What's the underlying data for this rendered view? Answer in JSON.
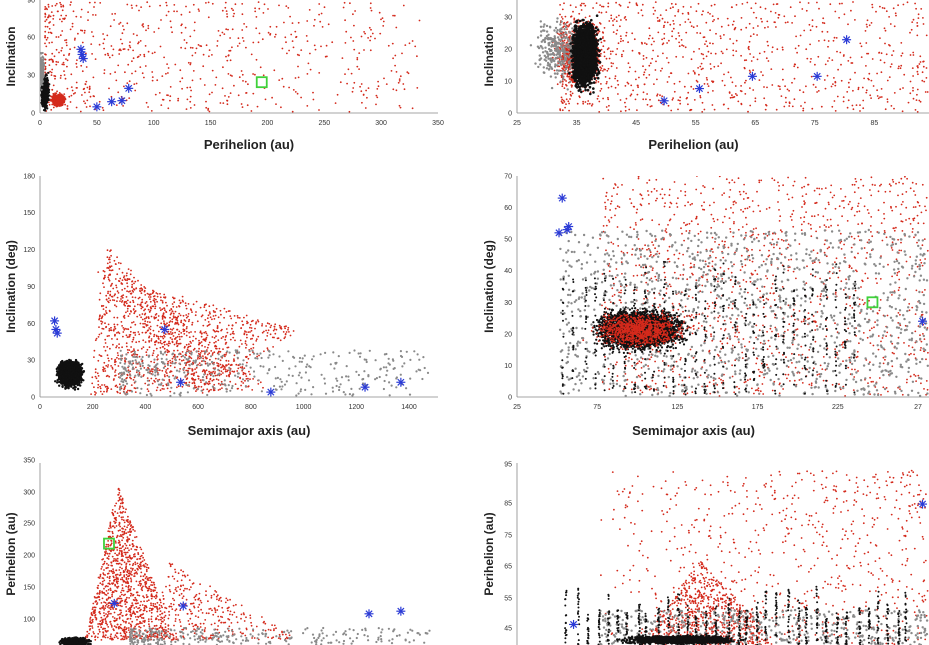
{
  "chart_data": [
    {
      "type": "scatter",
      "xlabel": "Perihelion (au)",
      "ylabel": "Inclination",
      "x_ticks": [
        "0",
        "50",
        "100",
        "150",
        "200",
        "250",
        "300",
        "350"
      ],
      "y_ticks": [
        "0",
        "30",
        "60",
        "90"
      ],
      "xlim": [
        0,
        350
      ],
      "ylim": [
        0,
        110
      ],
      "grid": false,
      "colors": {
        "black": "#111111",
        "grey": "#8a8a8a",
        "red": "#d42a1c",
        "blue": "#2b3bd6",
        "green": "#3fd13a"
      },
      "series": [
        {
          "values": [
            [
              33,
              20
            ],
            [
              34,
              35
            ],
            [
              35,
              10
            ],
            [
              36,
              45
            ],
            [
              37,
              25
            ],
            [
              38,
              5
            ],
            [
              40,
              30
            ],
            [
              42,
              15
            ],
            [
              35,
              50
            ],
            [
              33,
              40
            ],
            [
              39,
              55
            ],
            [
              41,
              8
            ]
          ]
        },
        {
          "values": [
            [
              45,
              30
            ],
            [
              55,
              10
            ],
            [
              70,
              40
            ],
            [
              90,
              60
            ],
            [
              110,
              80
            ],
            [
              130,
              50
            ],
            [
              150,
              70
            ],
            [
              170,
              90
            ],
            [
              200,
              100
            ],
            [
              240,
              85
            ],
            [
              280,
              75
            ],
            [
              310,
              95
            ],
            [
              95,
              25
            ],
            [
              120,
              100
            ],
            [
              60,
              55
            ]
          ]
        },
        {
          "values": [
            [
              36,
              62
            ],
            [
              37,
              57
            ],
            [
              38,
              53
            ],
            [
              50,
              6
            ],
            [
              63,
              11
            ],
            [
              72,
              12
            ],
            [
              78,
              24
            ]
          ]
        },
        {
          "values": [
            [
              195,
              30
            ]
          ]
        }
      ]
    },
    {
      "type": "scatter",
      "xlabel": "Perihelion (au)",
      "ylabel": "Inclination",
      "x_ticks": [
        "25",
        "35",
        "45",
        "55",
        "65",
        "75",
        "85",
        "9"
      ],
      "y_ticks": [
        "0",
        "10",
        "20",
        "30"
      ],
      "xlim": [
        25,
        95
      ],
      "ylim": [
        0,
        37
      ],
      "grid": false,
      "series": [
        {
          "values": [
            [
              32,
              15
            ],
            [
              34,
              25
            ],
            [
              36,
              20
            ],
            [
              38,
              10
            ],
            [
              37,
              30
            ],
            [
              35,
              5
            ],
            [
              39,
              18
            ],
            [
              40,
              22
            ],
            [
              33,
              12
            ],
            [
              41,
              28
            ]
          ]
        },
        {
          "values": [
            [
              44,
              20
            ],
            [
              50,
              25
            ],
            [
              60,
              30
            ],
            [
              70,
              15
            ],
            [
              80,
              33
            ],
            [
              90,
              20
            ],
            [
              55,
              10
            ],
            [
              48,
              35
            ],
            [
              65,
              28
            ],
            [
              85,
              12
            ]
          ]
        },
        {
          "values": [
            [
              50,
              4
            ],
            [
              56,
              8
            ],
            [
              65,
              12
            ],
            [
              76,
              12
            ],
            [
              81,
              24
            ]
          ]
        }
      ]
    },
    {
      "type": "scatter",
      "xlabel": "Semimajor axis (au)",
      "ylabel": "Inclination (deg)",
      "x_ticks": [
        "0",
        "200",
        "400",
        "600",
        "800",
        "1000",
        "1200",
        "1400"
      ],
      "y_ticks": [
        "0",
        "30",
        "60",
        "90",
        "120",
        "150",
        "180"
      ],
      "xlim": [
        0,
        1500
      ],
      "ylim": [
        0,
        180
      ],
      "grid": false,
      "series": [
        {
          "values": [
            [
              60,
              20
            ],
            [
              80,
              35
            ],
            [
              100,
              10
            ],
            [
              120,
              28
            ],
            [
              150,
              15
            ],
            [
              180,
              40
            ],
            [
              90,
              5
            ],
            [
              200,
              22
            ]
          ]
        },
        {
          "values": [
            [
              250,
              18
            ],
            [
              350,
              25
            ],
            [
              450,
              12
            ],
            [
              550,
              30
            ],
            [
              700,
              20
            ],
            [
              850,
              15
            ],
            [
              1000,
              25
            ],
            [
              1100,
              18
            ]
          ]
        },
        {
          "values": [
            [
              230,
              60
            ],
            [
              270,
              90
            ],
            [
              300,
              110
            ],
            [
              350,
              80
            ],
            [
              400,
              70
            ],
            [
              450,
              50
            ],
            [
              500,
              40
            ],
            [
              600,
              30
            ],
            [
              280,
              50
            ]
          ]
        },
        {
          "values": [
            [
              55,
              62
            ],
            [
              60,
              55
            ],
            [
              65,
              52
            ],
            [
              470,
              55
            ],
            [
              530,
              12
            ],
            [
              870,
              4
            ],
            [
              1225,
              8
            ],
            [
              1360,
              12
            ]
          ]
        }
      ]
    },
    {
      "type": "scatter",
      "xlabel": "Semimajor axis (au)",
      "ylabel": "Inclination (deg)",
      "x_ticks": [
        "25",
        "75",
        "125",
        "175",
        "225",
        "27"
      ],
      "y_ticks": [
        "0",
        "10",
        "20",
        "30",
        "40",
        "50",
        "60",
        "70"
      ],
      "xlim": [
        25,
        280
      ],
      "ylim": [
        0,
        70
      ],
      "grid": false,
      "series": [
        {
          "values": [
            [
              70,
              15
            ],
            [
              90,
              25
            ],
            [
              110,
              20
            ],
            [
              130,
              30
            ],
            [
              150,
              18
            ],
            [
              170,
              22
            ],
            [
              60,
              10
            ],
            [
              100,
              35
            ]
          ]
        },
        {
          "values": [
            [
              180,
              30
            ],
            [
              200,
              25
            ],
            [
              230,
              35
            ],
            [
              260,
              20
            ],
            [
              210,
              40
            ],
            [
              250,
              15
            ]
          ]
        },
        {
          "values": [
            [
              80,
              45
            ],
            [
              120,
              55
            ],
            [
              160,
              60
            ],
            [
              200,
              50
            ],
            [
              240,
              65
            ],
            [
              270,
              45
            ],
            [
              190,
              68
            ]
          ]
        },
        {
          "values": [
            [
              51,
              52
            ],
            [
              53,
              63
            ],
            [
              56,
              53
            ],
            [
              57,
              54
            ],
            [
              276,
              24
            ]
          ]
        },
        {
          "values": [
            [
              245,
              30
            ]
          ]
        }
      ]
    },
    {
      "type": "scatter",
      "xlabel": "",
      "ylabel": "Perihelion (au)",
      "x_ticks": [],
      "y_ticks": [
        "100",
        "150",
        "200",
        "250",
        "300",
        "350"
      ],
      "xlim": [
        0,
        1500
      ],
      "ylim": [
        0,
        350
      ],
      "grid": false,
      "series": [
        {
          "values": [
            [
              60,
              35
            ],
            [
              80,
              40
            ],
            [
              100,
              38
            ],
            [
              150,
              36
            ],
            [
              120,
              42
            ]
          ]
        },
        {
          "values": [
            [
              250,
              40
            ],
            [
              350,
              38
            ],
            [
              500,
              36
            ],
            [
              700,
              40
            ]
          ]
        },
        {
          "values": [
            [
              250,
              100
            ],
            [
              270,
              150
            ],
            [
              300,
              200
            ],
            [
              330,
              300
            ],
            [
              400,
              150
            ],
            [
              450,
              100
            ],
            [
              600,
              250
            ]
          ]
        },
        {
          "values": [
            [
              280,
              80
            ],
            [
              540,
              75
            ],
            [
              1240,
              60
            ],
            [
              1360,
              65
            ]
          ]
        },
        {
          "values": [
            [
              260,
              195
            ]
          ]
        }
      ]
    },
    {
      "type": "scatter",
      "xlabel": "",
      "ylabel": "Perihelion (au)",
      "x_ticks": [],
      "y_ticks": [
        "45",
        "55",
        "65",
        "75",
        "85",
        "95"
      ],
      "xlim": [
        25,
        280
      ],
      "ylim": [
        33,
        95
      ],
      "grid": false,
      "series": [
        {
          "values": [
            [
              60,
              38
            ],
            [
              80,
              37
            ],
            [
              100,
              39
            ],
            [
              150,
              36
            ],
            [
              200,
              38
            ]
          ]
        },
        {
          "values": [
            [
              180,
              40
            ],
            [
              220,
              42
            ],
            [
              260,
              39
            ]
          ]
        },
        {
          "values": [
            [
              120,
              55
            ],
            [
              160,
              70
            ],
            [
              200,
              90
            ],
            [
              240,
              80
            ],
            [
              260,
              60
            ]
          ]
        },
        {
          "values": [
            [
              60,
              40
            ],
            [
              276,
              81
            ]
          ]
        }
      ]
    }
  ]
}
